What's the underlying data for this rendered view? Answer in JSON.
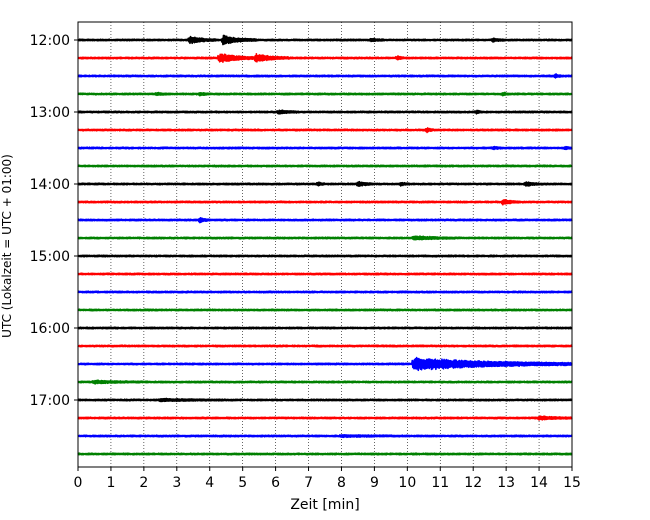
{
  "chart_data": {
    "type": "line",
    "title": "",
    "xlabel": "Zeit  [min]",
    "ylabel": "UTC (Lokalzeit = UTC + 01:00)",
    "xlim": [
      0,
      15
    ],
    "x_ticks": [
      "0",
      "1",
      "2",
      "3",
      "4",
      "5",
      "6",
      "7",
      "8",
      "9",
      "10",
      "11",
      "12",
      "13",
      "14",
      "15"
    ],
    "y_ticks": [
      "12:00",
      "13:00",
      "14:00",
      "15:00",
      "16:00",
      "17:00"
    ],
    "y_tick_rows": [
      0,
      4,
      8,
      12,
      16,
      20
    ],
    "grid": "vertical dotted",
    "colors": [
      "#000000",
      "#ff0000",
      "#0000ff",
      "#008000"
    ],
    "traces_start": "12:00",
    "trace_interval_min": 15,
    "noise_amplitude": 0.55,
    "traces": [
      {
        "label": "12:00",
        "color": "#000000",
        "events": [
          {
            "t": 3.4,
            "amp": 3.2,
            "dur": 0.8
          },
          {
            "t": 4.4,
            "amp": 4.2,
            "dur": 1.0
          },
          {
            "t": 8.9,
            "amp": 1.2,
            "dur": 0.4
          },
          {
            "t": 12.6,
            "amp": 1.3,
            "dur": 0.4
          }
        ]
      },
      {
        "label": "12:15",
        "color": "#ff0000",
        "events": [
          {
            "t": 4.3,
            "amp": 4.5,
            "dur": 1.1
          },
          {
            "t": 5.4,
            "amp": 4.0,
            "dur": 1.0
          },
          {
            "t": 9.7,
            "amp": 1.8,
            "dur": 0.2
          }
        ]
      },
      {
        "label": "12:30",
        "color": "#0000ff",
        "events": [
          {
            "t": 14.5,
            "amp": 1.8,
            "dur": 0.2
          }
        ]
      },
      {
        "label": "12:45",
        "color": "#008000",
        "events": [
          {
            "t": 2.4,
            "amp": 1.3,
            "dur": 0.3
          },
          {
            "t": 3.7,
            "amp": 1.3,
            "dur": 0.3
          },
          {
            "t": 12.9,
            "amp": 1.2,
            "dur": 0.3
          }
        ]
      },
      {
        "label": "13:00",
        "color": "#000000",
        "events": [
          {
            "t": 6.1,
            "amp": 1.8,
            "dur": 0.6
          },
          {
            "t": 12.1,
            "amp": 1.3,
            "dur": 0.2
          }
        ]
      },
      {
        "label": "13:15",
        "color": "#ff0000",
        "events": [
          {
            "t": 10.6,
            "amp": 2.0,
            "dur": 0.2
          }
        ]
      },
      {
        "label": "13:30",
        "color": "#0000ff",
        "events": [
          {
            "t": 12.6,
            "amp": 1.2,
            "dur": 0.3
          },
          {
            "t": 14.8,
            "amp": 1.2,
            "dur": 0.3
          }
        ]
      },
      {
        "label": "13:45",
        "color": "#008000",
        "events": []
      },
      {
        "label": "14:00",
        "color": "#000000",
        "events": [
          {
            "t": 7.3,
            "amp": 1.6,
            "dur": 0.2
          },
          {
            "t": 8.5,
            "amp": 2.0,
            "dur": 0.5
          },
          {
            "t": 9.8,
            "amp": 1.3,
            "dur": 0.3
          },
          {
            "t": 13.6,
            "amp": 1.8,
            "dur": 0.5
          }
        ]
      },
      {
        "label": "14:15",
        "color": "#ff0000",
        "events": [
          {
            "t": 12.9,
            "amp": 2.2,
            "dur": 0.5
          }
        ]
      },
      {
        "label": "14:30",
        "color": "#0000ff",
        "events": [
          {
            "t": 3.7,
            "amp": 2.4,
            "dur": 0.3
          }
        ]
      },
      {
        "label": "14:45",
        "color": "#008000",
        "events": [
          {
            "t": 10.2,
            "amp": 1.7,
            "dur": 1.3
          }
        ]
      },
      {
        "label": "15:00",
        "color": "#000000",
        "events": []
      },
      {
        "label": "15:15",
        "color": "#ff0000",
        "events": []
      },
      {
        "label": "15:30",
        "color": "#0000ff",
        "events": []
      },
      {
        "label": "15:45",
        "color": "#008000",
        "events": []
      },
      {
        "label": "16:00",
        "color": "#000000",
        "events": []
      },
      {
        "label": "16:15",
        "color": "#ff0000",
        "events": []
      },
      {
        "label": "16:30",
        "color": "#0000ff",
        "events": [
          {
            "t": 10.2,
            "amp": 6.5,
            "dur": 4.8
          }
        ]
      },
      {
        "label": "16:45",
        "color": "#008000",
        "events": [
          {
            "t": 0.5,
            "amp": 1.2,
            "dur": 1.5
          }
        ]
      },
      {
        "label": "17:00",
        "color": "#000000",
        "events": [
          {
            "t": 2.5,
            "amp": 1.0,
            "dur": 2.0
          }
        ]
      },
      {
        "label": "17:15",
        "color": "#ff0000",
        "events": [
          {
            "t": 14.0,
            "amp": 1.5,
            "dur": 1.2
          }
        ]
      },
      {
        "label": "17:30",
        "color": "#0000ff",
        "events": [
          {
            "t": 8.0,
            "amp": 0.8,
            "dur": 2.0
          }
        ]
      },
      {
        "label": "17:45",
        "color": "#008000",
        "events": []
      }
    ]
  }
}
